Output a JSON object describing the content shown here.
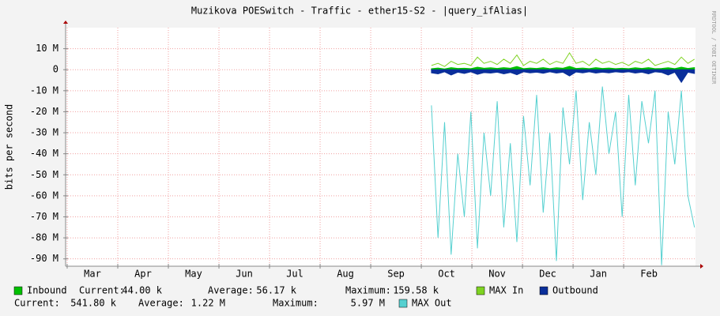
{
  "chart_data": {
    "type": "line",
    "title": "Muzikova POESwitch - Traffic - ether15-S2 - |query_ifAlias|",
    "y_label": "bits per second",
    "side_text": "RRDTOOL / TOBI OETIKER",
    "xlim": [
      0,
      12.42
    ],
    "xticks": [
      {
        "value": 0,
        "label": "Mar"
      },
      {
        "value": 1,
        "label": "Apr"
      },
      {
        "value": 2,
        "label": "May"
      },
      {
        "value": 3,
        "label": "Jun"
      },
      {
        "value": 4,
        "label": "Jul"
      },
      {
        "value": 5,
        "label": "Aug"
      },
      {
        "value": 6,
        "label": "Sep"
      },
      {
        "value": 7,
        "label": "Oct"
      },
      {
        "value": 8,
        "label": "Nov"
      },
      {
        "value": 9,
        "label": "Dec"
      },
      {
        "value": 10,
        "label": "Jan"
      },
      {
        "value": 11,
        "label": "Feb"
      }
    ],
    "ylim": [
      -93.5,
      20
    ],
    "yticks": [
      {
        "value": 10,
        "label": "10 M"
      },
      0,
      {
        "value": -10,
        "label": "-10 M"
      },
      {
        "value": -20,
        "label": "-20 M"
      },
      {
        "value": -30,
        "label": "-30 M"
      },
      {
        "value": -40,
        "label": "-40 M"
      },
      {
        "value": -50,
        "label": "-50 M"
      },
      {
        "value": -60,
        "label": "-60 M"
      },
      {
        "value": -70,
        "label": "-70 M"
      },
      {
        "value": -80,
        "label": "-80 M"
      },
      {
        "value": -90,
        "label": "-90 M"
      }
    ],
    "grid": true,
    "x": [
      7.2,
      7.33,
      7.46,
      7.59,
      7.72,
      7.85,
      7.98,
      8.11,
      8.24,
      8.37,
      8.5,
      8.63,
      8.76,
      8.89,
      9.02,
      9.15,
      9.28,
      9.41,
      9.54,
      9.67,
      9.8,
      9.93,
      10.06,
      10.19,
      10.32,
      10.45,
      10.58,
      10.71,
      10.84,
      10.97,
      11.1,
      11.23,
      11.36,
      11.49,
      11.62,
      11.75,
      11.88,
      12.01,
      12.14,
      12.27,
      12.4
    ],
    "series": [
      {
        "name": "Inbound",
        "color": "#00c000",
        "style": "area",
        "values": [
          0.5,
          0.8,
          0.4,
          1,
          0.6,
          0.7,
          0.5,
          1.2,
          0.7,
          0.9,
          0.6,
          1,
          0.7,
          1.5,
          0.5,
          0.8,
          0.6,
          1,
          0.5,
          0.9,
          0.7,
          1.6,
          0.6,
          0.8,
          0.5,
          1,
          0.6,
          0.8,
          0.5,
          0.7,
          0.5,
          0.9,
          0.6,
          1,
          0.5,
          0.6,
          0.9,
          0.5,
          1.2,
          0.6,
          1
        ]
      },
      {
        "name": "MAX In",
        "color": "#7ed321",
        "style": "line",
        "values": [
          2,
          3,
          1.5,
          4,
          2.5,
          3,
          2,
          6,
          3,
          4,
          2.5,
          5,
          3,
          7,
          2,
          4,
          3,
          5,
          2.5,
          4,
          3,
          8,
          3,
          4,
          2,
          5,
          3,
          4,
          2.5,
          3.5,
          2,
          4,
          3,
          5,
          2,
          3,
          4,
          2.5,
          6,
          3,
          5
        ]
      },
      {
        "name": "Outbound",
        "color": "#0a2f9a",
        "style": "area",
        "values": [
          -1.5,
          -2,
          -1,
          -2.5,
          -1.2,
          -1.8,
          -1,
          -2.2,
          -1.4,
          -1.6,
          -1.2,
          -2,
          -1.3,
          -2.4,
          -1,
          -1.5,
          -1.2,
          -1.7,
          -1,
          -1.6,
          -1.2,
          -3,
          -1.1,
          -1.5,
          -1,
          -1.6,
          -1.2,
          -1.5,
          -1,
          -1.3,
          -1,
          -1.6,
          -1.2,
          -2,
          -1,
          -1.3,
          -2.5,
          -1.2,
          -6,
          -1.2,
          -1.8
        ]
      },
      {
        "name": "MAX Out",
        "color": "#55d0d0",
        "style": "line",
        "values": [
          -17,
          -80,
          -25,
          -88,
          -40,
          -70,
          -20,
          -85,
          -30,
          -60,
          -15,
          -75,
          -35,
          -82,
          -22,
          -55,
          -12,
          -68,
          -30,
          -91,
          -18,
          -45,
          -10,
          -62,
          -25,
          -50,
          -8,
          -40,
          -20,
          -70,
          -12,
          -55,
          -15,
          -35,
          -10,
          -93,
          -20,
          -45,
          -10,
          -60,
          -75
        ]
      }
    ],
    "inbound_stats": [
      [
        "Current:",
        "44.00 k"
      ],
      [
        "Average:",
        "56.17 k"
      ],
      [
        "Maximum:",
        "159.58 k"
      ]
    ],
    "outbound_stats": [
      [
        "Current:",
        "541.80 k"
      ],
      [
        "Average:",
        "1.22 M"
      ],
      [
        "Maximum:",
        "5.97 M"
      ]
    ]
  }
}
